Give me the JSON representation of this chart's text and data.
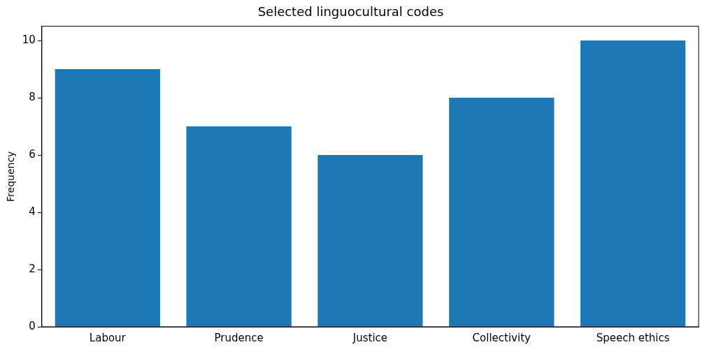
{
  "chart_data": {
    "type": "bar",
    "title": "Selected linguocultural codes",
    "ylabel": "Frequency",
    "categories": [
      "Labour",
      "Prudence",
      "Justice",
      "Collectivity",
      "Speech ethics"
    ],
    "values": [
      9,
      7,
      6,
      8,
      10
    ],
    "color": "#1f77b4",
    "ylim": [
      0,
      10.5
    ],
    "yticks": [
      0,
      2,
      4,
      6,
      8,
      10
    ],
    "grid": false,
    "legend": false
  }
}
